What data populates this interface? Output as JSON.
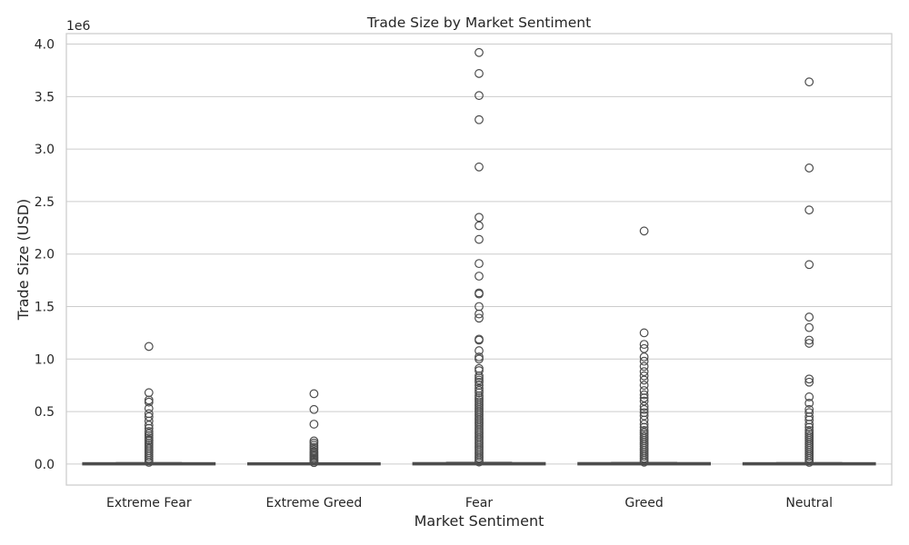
{
  "chart_data": {
    "type": "box",
    "title": "Trade Size by Market Sentiment",
    "xlabel": "Market Sentiment",
    "ylabel": "Trade Size (USD)",
    "y_offset_label": "1e6",
    "ylim": [
      -0.2,
      4.1
    ],
    "yticks": [
      0.0,
      0.5,
      1.0,
      1.5,
      2.0,
      2.5,
      3.0,
      3.5,
      4.0
    ],
    "ytick_labels": [
      "0.0",
      "0.5",
      "1.0",
      "1.5",
      "2.0",
      "2.5",
      "3.0",
      "3.5",
      "4.0"
    ],
    "grid": true,
    "colors": {
      "box_edge": "#4d4d4d",
      "grid": "#cccccc",
      "spine": "#cccccc",
      "text": "#262626"
    },
    "categories": [
      "Extreme Fear",
      "Extreme Greed",
      "Fear",
      "Greed",
      "Neutral"
    ],
    "boxes": [
      {
        "category": "Extreme Fear",
        "q1": 0.0,
        "median": 0.001,
        "q3": 0.005,
        "whisker_low": 0.0,
        "whisker_high": 0.012,
        "outliers_dense_max": 0.2,
        "outliers": [
          1.12,
          0.68,
          0.61,
          0.59,
          0.53,
          0.48,
          0.45,
          0.41,
          0.37,
          0.34,
          0.31,
          0.29,
          0.27,
          0.25,
          0.23,
          0.22
        ]
      },
      {
        "category": "Extreme Greed",
        "q1": 0.0,
        "median": 0.001,
        "q3": 0.004,
        "whisker_low": 0.0,
        "whisker_high": 0.01,
        "outliers_dense_max": 0.12,
        "outliers": [
          0.67,
          0.52,
          0.38,
          0.22,
          0.2,
          0.18,
          0.16,
          0.14
        ]
      },
      {
        "category": "Fear",
        "q1": 0.0,
        "median": 0.001,
        "q3": 0.006,
        "whisker_low": 0.0,
        "whisker_high": 0.015,
        "outliers_dense_max": 0.65,
        "outliers": [
          3.92,
          3.72,
          3.51,
          3.28,
          2.83,
          2.35,
          2.27,
          2.14,
          1.91,
          1.79,
          1.63,
          1.62,
          1.5,
          1.43,
          1.39,
          1.19,
          1.18,
          1.08,
          1.02,
          1.0,
          0.91,
          0.89,
          0.84,
          0.82,
          0.8,
          0.78,
          0.75,
          0.72,
          0.7,
          0.68
        ]
      },
      {
        "category": "Greed",
        "q1": 0.0,
        "median": 0.001,
        "q3": 0.006,
        "whisker_low": 0.0,
        "whisker_high": 0.014,
        "outliers_dense_max": 0.3,
        "outliers": [
          2.22,
          1.25,
          1.14,
          1.1,
          1.02,
          0.98,
          0.93,
          0.88,
          0.84,
          0.8,
          0.75,
          0.7,
          0.66,
          0.63,
          0.6,
          0.55,
          0.52,
          0.49,
          0.46,
          0.42,
          0.38,
          0.35,
          0.32
        ]
      },
      {
        "category": "Neutral",
        "q1": 0.0,
        "median": 0.001,
        "q3": 0.005,
        "whisker_low": 0.0,
        "whisker_high": 0.012,
        "outliers_dense_max": 0.32,
        "outliers": [
          3.64,
          2.82,
          2.42,
          1.9,
          1.4,
          1.3,
          1.18,
          1.15,
          0.81,
          0.78,
          0.64,
          0.58,
          0.52,
          0.49,
          0.45,
          0.42,
          0.38,
          0.35
        ]
      }
    ]
  }
}
